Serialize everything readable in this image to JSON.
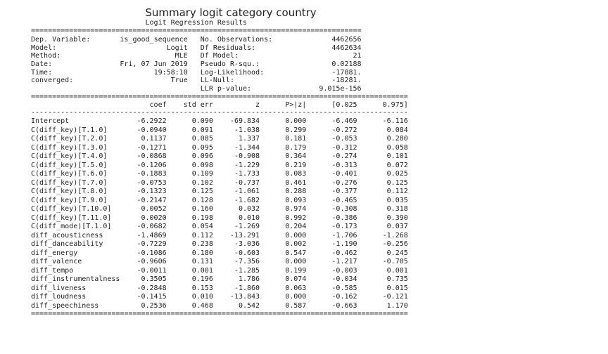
{
  "title": "Summary logit category country",
  "summary": {
    "header": "Logit Regression Results",
    "rule_top": "==============================================================================",
    "info_left": [
      [
        "Dep. Variable:",
        "is_good_sequence"
      ],
      [
        "Model:",
        "Logit"
      ],
      [
        "Method:",
        "MLE"
      ],
      [
        "Date:",
        "Fri, 07 Jun 2019"
      ],
      [
        "Time:",
        "19:58:10"
      ],
      [
        "converged:",
        "True"
      ]
    ],
    "info_right": [
      [
        "No. Observations:",
        "4462656"
      ],
      [
        "Df Residuals:",
        "4462634"
      ],
      [
        "Df Model:",
        "21"
      ],
      [
        "Pseudo R-squ.:",
        "0.02188"
      ],
      [
        "Log-Likelihood:",
        "-17881."
      ],
      [
        "LL-Null:",
        "-18281."
      ],
      [
        "LLR p-value:",
        "9.015e-156"
      ]
    ],
    "rule_mid": "=========================================================================================",
    "columns": [
      "coef",
      "std err",
      "z",
      "P>|z|",
      "[0.025",
      "0.975]"
    ],
    "rule_dash": "-----------------------------------------------------------------------------------------",
    "rows": [
      [
        "Intercept",
        "-6.2922",
        "0.090",
        "-69.834",
        "0.000",
        "-6.469",
        "-6.116"
      ],
      [
        "C(diff_key)[T.1.0]",
        "-0.0940",
        "0.091",
        "-1.038",
        "0.299",
        "-0.272",
        "0.084"
      ],
      [
        "C(diff_key)[T.2.0]",
        "0.1137",
        "0.085",
        "1.337",
        "0.181",
        "-0.053",
        "0.280"
      ],
      [
        "C(diff_key)[T.3.0]",
        "-0.1271",
        "0.095",
        "-1.344",
        "0.179",
        "-0.312",
        "0.058"
      ],
      [
        "C(diff_key)[T.4.0]",
        "-0.0868",
        "0.096",
        "-0.908",
        "0.364",
        "-0.274",
        "0.101"
      ],
      [
        "C(diff_key)[T.5.0]",
        "-0.1206",
        "0.098",
        "-1.229",
        "0.219",
        "-0.313",
        "0.072"
      ],
      [
        "C(diff_key)[T.6.0]",
        "-0.1883",
        "0.109",
        "-1.733",
        "0.083",
        "-0.401",
        "0.025"
      ],
      [
        "C(diff_key)[T.7.0]",
        "-0.0753",
        "0.102",
        "-0.737",
        "0.461",
        "-0.276",
        "0.125"
      ],
      [
        "C(diff_key)[T.8.0]",
        "-0.1323",
        "0.125",
        "-1.061",
        "0.288",
        "-0.377",
        "0.112"
      ],
      [
        "C(diff_key)[T.9.0]",
        "-0.2147",
        "0.128",
        "-1.682",
        "0.093",
        "-0.465",
        "0.035"
      ],
      [
        "C(diff_key)[T.10.0]",
        "0.0052",
        "0.160",
        "0.032",
        "0.974",
        "-0.308",
        "0.318"
      ],
      [
        "C(diff_key)[T.11.0]",
        "0.0020",
        "0.198",
        "0.010",
        "0.992",
        "-0.386",
        "0.390"
      ],
      [
        "C(diff_mode)[T.1.0]",
        "-0.0682",
        "0.054",
        "-1.269",
        "0.204",
        "-0.173",
        "0.037"
      ],
      [
        "diff_acousticness",
        "-1.4869",
        "0.112",
        "-13.291",
        "0.000",
        "-1.706",
        "-1.268"
      ],
      [
        "diff_danceability",
        "-0.7229",
        "0.238",
        "-3.036",
        "0.002",
        "-1.190",
        "-0.256"
      ],
      [
        "diff_energy",
        "-0.1086",
        "0.180",
        "-0.603",
        "0.547",
        "-0.462",
        "0.245"
      ],
      [
        "diff_valence",
        "-0.9606",
        "0.131",
        "-7.356",
        "0.000",
        "-1.217",
        "-0.705"
      ],
      [
        "diff_tempo",
        "-0.0011",
        "0.001",
        "-1.285",
        "0.199",
        "-0.003",
        "0.001"
      ],
      [
        "diff_instrumentalness",
        "0.3505",
        "0.196",
        "1.786",
        "0.074",
        "-0.034",
        "0.735"
      ],
      [
        "diff_liveness",
        "-0.2848",
        "0.153",
        "-1.860",
        "0.063",
        "-0.585",
        "0.015"
      ],
      [
        "diff_loudness",
        "-0.1415",
        "0.010",
        "-13.843",
        "0.000",
        "-0.162",
        "-0.121"
      ],
      [
        "diff_speechiness",
        "0.2536",
        "0.468",
        "0.542",
        "0.587",
        "-0.663",
        "1.170"
      ]
    ],
    "rule_bottom": "========================================================================================="
  }
}
